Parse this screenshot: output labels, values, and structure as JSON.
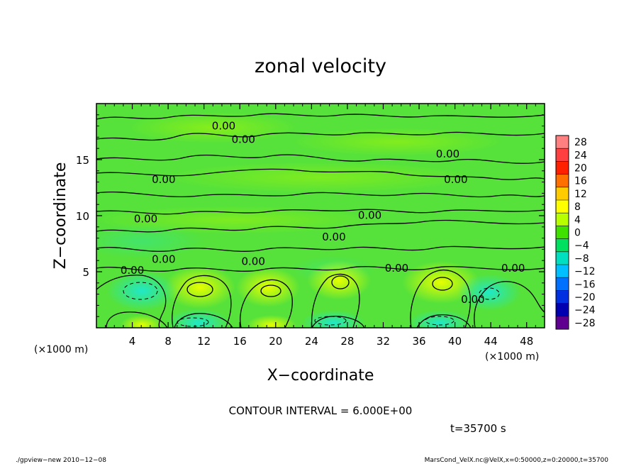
{
  "chart_data": {
    "type": "heatmap",
    "title": "zonal velocity",
    "xlabel": "X−coordinate",
    "ylabel": "Z−coordinate",
    "x_unit": "(×1000 m)",
    "x_unit_right": "(×1000 m)",
    "xlim": [
      0,
      50
    ],
    "ylim": [
      0,
      20
    ],
    "x_ticks": [
      4,
      8,
      12,
      16,
      20,
      24,
      28,
      32,
      36,
      40,
      44,
      48
    ],
    "y_ticks": [
      5,
      10,
      15
    ],
    "colorbar": {
      "levels": [
        "28",
        "24",
        "20",
        "16",
        "12",
        "8",
        "4",
        "0",
        "−4",
        "−8",
        "−12",
        "−16",
        "−20",
        "−24",
        "−28"
      ],
      "colors": [
        "#ff8080",
        "#ff4040",
        "#ff2000",
        "#ff7000",
        "#ffcc00",
        "#ffff00",
        "#b8ff00",
        "#40e000",
        "#00e060",
        "#00e0c0",
        "#00c0ff",
        "#0070ff",
        "#0030e0",
        "#0000b0",
        "#600090"
      ]
    },
    "contour_labels": [
      {
        "text": "0.00",
        "x": 16.4,
        "z": 16.5
      },
      {
        "text": "0.00",
        "x": 14.2,
        "z": 17.7
      },
      {
        "text": "0.00",
        "x": 7.5,
        "z": 12.9
      },
      {
        "text": "0.00",
        "x": 39.2,
        "z": 15.2
      },
      {
        "text": "0.00",
        "x": 40.1,
        "z": 12.9
      },
      {
        "text": "0.00",
        "x": 5.5,
        "z": 9.4
      },
      {
        "text": "0.00",
        "x": 30.5,
        "z": 9.7
      },
      {
        "text": "0.00",
        "x": 26.5,
        "z": 7.8
      },
      {
        "text": "0.00",
        "x": 7.5,
        "z": 5.8
      },
      {
        "text": "0.00",
        "x": 17.5,
        "z": 5.6
      },
      {
        "text": "0.00",
        "x": 4.0,
        "z": 4.8
      },
      {
        "text": "0.00",
        "x": 33.5,
        "z": 5.0
      },
      {
        "text": "0.00",
        "x": 46.5,
        "z": 5.0
      },
      {
        "text": "0.00",
        "x": 42.0,
        "z": 2.2
      }
    ]
  },
  "contour_interval": "CONTOUR INTERVAL = 6.000E+00",
  "time_label": "t=35700 s",
  "footer_left": "./gpview−new   2010−12−08",
  "footer_right": "MarsCond_VelX.nc@VelX,x=0:50000,z=0:20000,t=35700"
}
